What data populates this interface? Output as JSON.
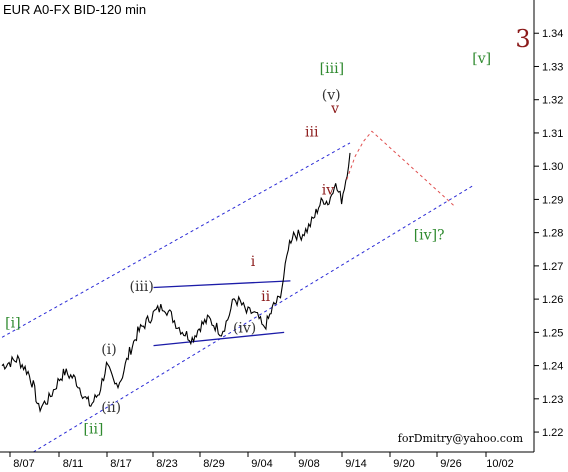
{
  "chart_data": {
    "type": "line",
    "title": "EUR A0-FX BID-120 min",
    "ylim": [
      1.214,
      1.35
    ],
    "y_ticks": [
      "1.22",
      "1.23",
      "1.24",
      "1.25",
      "1.26",
      "1.27",
      "1.28",
      "1.29",
      "1.30",
      "1.31",
      "1.32",
      "1.33",
      "1.34"
    ],
    "x_ticks": [
      "8/07",
      "8/11",
      "8/17",
      "8/23",
      "8/29",
      "9/04",
      "9/08",
      "9/14",
      "9/20",
      "9/26",
      "10/02"
    ],
    "price_keypoints": [
      [
        0,
        1.24
      ],
      [
        1.5,
        1.242
      ],
      [
        2.5,
        1.238
      ],
      [
        3.0,
        1.234
      ],
      [
        3.5,
        1.227
      ],
      [
        4.5,
        1.23
      ],
      [
        5.5,
        1.236
      ],
      [
        6.0,
        1.238
      ],
      [
        7.0,
        1.236
      ],
      [
        8.0,
        1.23
      ],
      [
        8.5,
        1.228
      ],
      [
        9.3,
        1.232
      ],
      [
        10.0,
        1.24
      ],
      [
        10.8,
        1.234
      ],
      [
        11.4,
        1.236
      ],
      [
        12.2,
        1.244
      ],
      [
        13.0,
        1.25
      ],
      [
        13.8,
        1.253
      ],
      [
        14.6,
        1.256
      ],
      [
        15.5,
        1.258
      ],
      [
        16.2,
        1.255
      ],
      [
        16.8,
        1.252
      ],
      [
        17.4,
        1.25
      ],
      [
        18.2,
        1.248
      ],
      [
        19.0,
        1.252
      ],
      [
        19.8,
        1.254
      ],
      [
        20.4,
        1.252
      ],
      [
        21.0,
        1.25
      ],
      [
        21.6,
        1.254
      ],
      [
        22.2,
        1.26
      ],
      [
        22.8,
        1.259
      ],
      [
        23.4,
        1.256
      ],
      [
        24.0,
        1.256
      ],
      [
        24.6,
        1.254
      ],
      [
        25.0,
        1.251
      ],
      [
        25.5,
        1.254
      ],
      [
        26.0,
        1.258
      ],
      [
        26.5,
        1.26
      ],
      [
        26.8,
        1.264
      ],
      [
        27.1,
        1.269
      ],
      [
        27.4,
        1.276
      ],
      [
        27.9,
        1.28
      ],
      [
        28.5,
        1.279
      ],
      [
        29.2,
        1.281
      ],
      [
        29.8,
        1.284
      ],
      [
        30.3,
        1.288
      ],
      [
        30.8,
        1.29
      ],
      [
        31.3,
        1.289
      ],
      [
        31.8,
        1.295
      ],
      [
        32.2,
        1.292
      ],
      [
        32.5,
        1.29
      ],
      [
        32.9,
        1.296
      ],
      [
        33.3,
        1.304
      ]
    ],
    "channel_upper": [
      [
        -2,
        1.245
      ],
      [
        33.3,
        1.307
      ]
    ],
    "channel_lower": [
      [
        3.0,
        1.214
      ],
      [
        45.0,
        1.294
      ]
    ],
    "triangle_upper": [
      [
        14.5,
        1.2635
      ],
      [
        27.6,
        1.2655
      ]
    ],
    "triangle_lower": [
      [
        14.5,
        1.246
      ],
      [
        27.0,
        1.25
      ]
    ],
    "forecast_path": [
      [
        33.0,
        1.296
      ],
      [
        33.8,
        1.303
      ],
      [
        34.6,
        1.3075
      ],
      [
        35.4,
        1.3105
      ],
      [
        43.3,
        1.288
      ]
    ],
    "labels": [
      {
        "text": "[i]",
        "x": 0.3,
        "y": 1.2515,
        "color": "#2f8a2f"
      },
      {
        "text": "[ii]",
        "x": 7.8,
        "y": 1.2195,
        "color": "#2f8a2f"
      },
      {
        "text": "(i)",
        "x": 9.5,
        "y": 1.2435,
        "color": "#333333"
      },
      {
        "text": "(ii)",
        "x": 9.5,
        "y": 1.226,
        "color": "#333333"
      },
      {
        "text": "(iii)",
        "x": 12.2,
        "y": 1.2625,
        "color": "#333333"
      },
      {
        "text": "(iv)",
        "x": 22.1,
        "y": 1.25,
        "color": "#333333"
      },
      {
        "text": "i",
        "x": 23.8,
        "y": 1.27,
        "color": "#8b1a1a"
      },
      {
        "text": "ii",
        "x": 24.8,
        "y": 1.2595,
        "color": "#8b1a1a"
      },
      {
        "text": "iii",
        "x": 29.0,
        "y": 1.309,
        "color": "#8b1a1a"
      },
      {
        "text": "iv",
        "x": 30.6,
        "y": 1.2915,
        "color": "#8b1a1a"
      },
      {
        "text": "v",
        "x": 31.5,
        "y": 1.316,
        "color": "#8b1a1a"
      },
      {
        "text": "(v)",
        "x": 30.6,
        "y": 1.32,
        "color": "#333333"
      },
      {
        "text": "[iii]",
        "x": 30.4,
        "y": 1.328,
        "color": "#2f8a2f"
      },
      {
        "text": "[iv]?",
        "x": 39.4,
        "y": 1.278,
        "color": "#2f8a2f"
      },
      {
        "text": "[v]",
        "x": 45.0,
        "y": 1.331,
        "color": "#2f8a2f"
      }
    ],
    "wave_degree_marker": "3",
    "watermark": "forDmitry@yahoo.com",
    "colors": {
      "price": "#000000",
      "channel": "#2b2bd6",
      "triangle": "#1c1ca8",
      "forecast": "#e05050",
      "degree_marker": "#8b1a1a",
      "axis": "#000000",
      "grid_tick": "#000000"
    }
  }
}
